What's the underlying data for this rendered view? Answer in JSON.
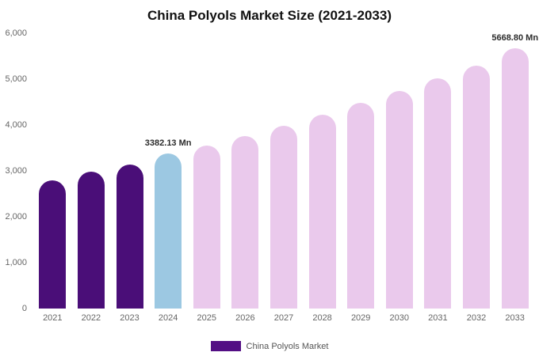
{
  "chart_data": {
    "type": "bar",
    "title": "China Polyols Market Size (2021-2033)",
    "categories": [
      "2021",
      "2022",
      "2023",
      "2024",
      "2025",
      "2026",
      "2027",
      "2028",
      "2029",
      "2030",
      "2031",
      "2032",
      "2033"
    ],
    "values": [
      2800,
      2980,
      3140,
      3382.13,
      3550,
      3760,
      3990,
      4230,
      4480,
      4740,
      5010,
      5300,
      5668.8
    ],
    "bar_colors": [
      "#4a0e78",
      "#4a0e78",
      "#4a0e78",
      "#9cc8e2",
      "#eac9ec",
      "#eac9ec",
      "#eac9ec",
      "#eac9ec",
      "#eac9ec",
      "#eac9ec",
      "#eac9ec",
      "#eac9ec",
      "#eac9ec"
    ],
    "data_labels": [
      {
        "index": 3,
        "text": "3382.13 Mn"
      },
      {
        "index": 12,
        "text": "5668.80 Mn"
      }
    ],
    "ylim": [
      0,
      6000
    ],
    "y_ticks": [
      {
        "value": 0,
        "label": "0"
      },
      {
        "value": 1000,
        "label": "1,000"
      },
      {
        "value": 2000,
        "label": "2,000"
      },
      {
        "value": 3000,
        "label": "3,000"
      },
      {
        "value": 4000,
        "label": "4,000"
      },
      {
        "value": 5000,
        "label": "5,000"
      },
      {
        "value": 6000,
        "label": "6,000"
      }
    ],
    "xlabel": "",
    "ylabel": "",
    "grid": false,
    "legend_position": "bottom",
    "legend": {
      "label": "China Polyols Market",
      "color": "#530e84"
    }
  }
}
